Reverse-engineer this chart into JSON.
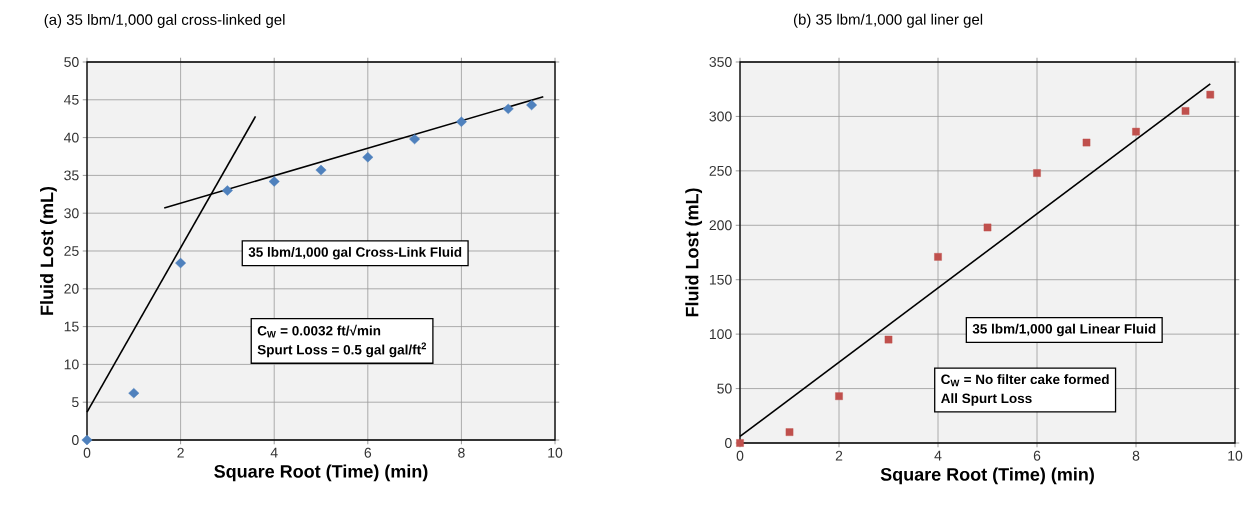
{
  "chart_data": [
    {
      "type": "scatter",
      "title": "(a) 35 lbm/1,000 gal cross-linked gel",
      "xlabel": "Square Root (Time) (min)",
      "ylabel": "Fluid Lost (mL)",
      "xlim": [
        0,
        10
      ],
      "ylim": [
        0,
        50
      ],
      "xticks": [
        0,
        2,
        4,
        6,
        8,
        10
      ],
      "yticks": [
        0,
        5,
        10,
        15,
        20,
        25,
        30,
        35,
        40,
        45,
        50
      ],
      "grid": true,
      "series": [
        {
          "color": "#4f81bd",
          "marker": "diamond",
          "x": [
            0,
            1,
            2,
            3,
            4,
            5,
            6,
            7,
            8,
            9,
            9.5
          ],
          "values": [
            0,
            6.2,
            23.4,
            33,
            34.2,
            35.7,
            37.4,
            39.8,
            42.1,
            43.8,
            44.3
          ]
        },
        {
          "type": "line",
          "color": "#000000",
          "marker": "none",
          "x": [
            0,
            3.6
          ],
          "values": [
            3.7,
            42.8
          ]
        },
        {
          "type": "line",
          "color": "#000000",
          "marker": "none",
          "x": [
            1.65,
            9.75
          ],
          "values": [
            30.7,
            45.4
          ]
        }
      ],
      "annotations": [
        "35 lbm/1,000 gal  Cross-Link Fluid",
        "C$_{W}$ = 0.0032 ft/√min",
        "Spurt Loss = 0.5 gal gal/ft$^{2}$"
      ]
    },
    {
      "type": "scatter",
      "title": "(b) 35 lbm/1,000 gal liner gel",
      "xlabel": "Square Root (Time) (min)",
      "ylabel": "Fluid Lost (mL)",
      "xlim": [
        0,
        10
      ],
      "ylim": [
        0,
        350
      ],
      "xticks": [
        0,
        2,
        4,
        6,
        8,
        10
      ],
      "yticks": [
        0,
        50,
        100,
        150,
        200,
        250,
        300,
        350
      ],
      "grid": true,
      "series": [
        {
          "color": "#c0504d",
          "marker": "square",
          "x": [
            0,
            1,
            2,
            3,
            4,
            5,
            6,
            7,
            8,
            9,
            9.5
          ],
          "values": [
            0,
            10,
            43,
            95,
            171,
            198,
            248,
            276,
            286,
            305,
            320
          ]
        },
        {
          "type": "line",
          "color": "#000000",
          "marker": "none",
          "x": [
            0,
            9.5
          ],
          "values": [
            6,
            330
          ]
        }
      ],
      "annotations": [
        "35 lbm/1,000 gal  Linear Fluid",
        "C$_{W}$ = No filter cake formed",
        "All Spurt Loss"
      ]
    }
  ]
}
